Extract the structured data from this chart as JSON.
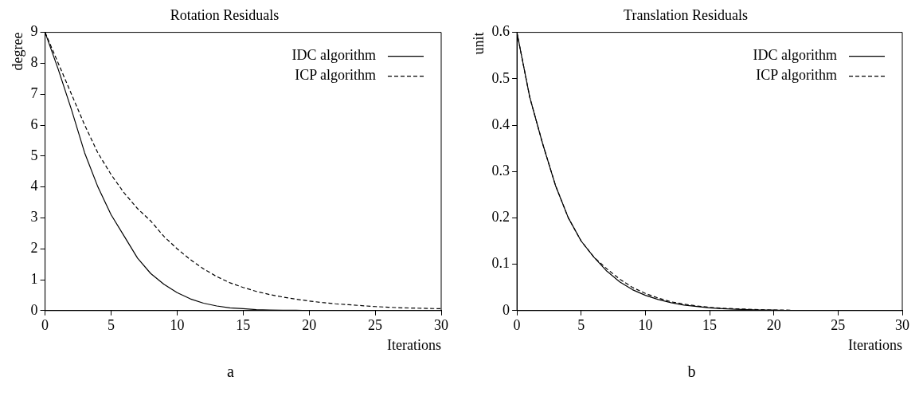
{
  "chart_data": [
    {
      "type": "line",
      "title": "Rotation Residuals",
      "xlabel": "Iterations",
      "ylabel": "degree",
      "xlim": [
        0,
        30
      ],
      "xticks": [
        0,
        5,
        10,
        15,
        20,
        25,
        30
      ],
      "ylim": [
        0,
        9
      ],
      "yticks": [
        0,
        1,
        2,
        3,
        4,
        5,
        6,
        7,
        8,
        9
      ],
      "grid": false,
      "legend": "top right",
      "marker": "none",
      "annotations": [
        "a"
      ],
      "x": [
        0,
        1,
        2,
        3,
        4,
        5,
        6,
        7,
        8,
        9,
        10,
        11,
        12,
        13,
        14,
        15,
        16,
        17,
        18,
        19,
        20,
        21,
        22,
        23,
        24,
        25,
        26,
        27,
        28,
        29,
        30
      ],
      "series": [
        {
          "name": "IDC algorithm",
          "color": "#000000",
          "line_style": "solid",
          "values": [
            9,
            7.8,
            6.5,
            5.1,
            4.0,
            3.1,
            2.4,
            1.7,
            1.2,
            0.85,
            0.58,
            0.38,
            0.24,
            0.15,
            0.09,
            0.06,
            0.03,
            0.02,
            0.01,
            0.01,
            0,
            0,
            0,
            0,
            0,
            0,
            0,
            0,
            0,
            0,
            0
          ]
        },
        {
          "name": "ICP algorithm",
          "color": "#000000",
          "line_style": "dashed",
          "values": [
            9,
            8.0,
            7.0,
            6.0,
            5.1,
            4.4,
            3.8,
            3.3,
            2.9,
            2.4,
            2.0,
            1.65,
            1.35,
            1.1,
            0.9,
            0.75,
            0.62,
            0.52,
            0.44,
            0.37,
            0.31,
            0.26,
            0.22,
            0.19,
            0.16,
            0.13,
            0.11,
            0.09,
            0.08,
            0.07,
            0.06
          ]
        }
      ]
    },
    {
      "type": "line",
      "title": "Translation Residuals",
      "xlabel": "Iterations",
      "ylabel": "unit",
      "xlim": [
        0,
        30
      ],
      "xticks": [
        0,
        5,
        10,
        15,
        20,
        25,
        30
      ],
      "ylim": [
        0,
        0.6
      ],
      "yticks": [
        0,
        0.1,
        0.2,
        0.3,
        0.4,
        0.5,
        0.6
      ],
      "grid": false,
      "legend": "top right",
      "marker": "none",
      "annotations": [
        "b"
      ],
      "x": [
        0,
        1,
        2,
        3,
        4,
        5,
        6,
        7,
        8,
        9,
        10,
        11,
        12,
        13,
        14,
        15,
        16,
        17,
        18,
        19,
        20,
        21,
        22,
        23,
        24,
        25,
        26,
        27,
        28,
        29,
        30
      ],
      "series": [
        {
          "name": "IDC algorithm",
          "color": "#000000",
          "line_style": "solid",
          "values": [
            0.6,
            0.46,
            0.36,
            0.27,
            0.2,
            0.15,
            0.115,
            0.085,
            0.062,
            0.045,
            0.033,
            0.024,
            0.017,
            0.012,
            0.009,
            0.006,
            0.004,
            0.003,
            0.002,
            0.001,
            0.001,
            0,
            0,
            0,
            0,
            0,
            0,
            0,
            0,
            0,
            0
          ]
        },
        {
          "name": "ICP algorithm",
          "color": "#000000",
          "line_style": "dashed",
          "values": [
            0.6,
            0.46,
            0.36,
            0.27,
            0.2,
            0.15,
            0.115,
            0.09,
            0.068,
            0.05,
            0.037,
            0.027,
            0.019,
            0.014,
            0.01,
            0.007,
            0.005,
            0.004,
            0.003,
            0.002,
            0.001,
            0.001,
            0,
            0,
            0,
            0,
            0,
            0,
            0,
            0,
            0
          ]
        }
      ]
    }
  ]
}
